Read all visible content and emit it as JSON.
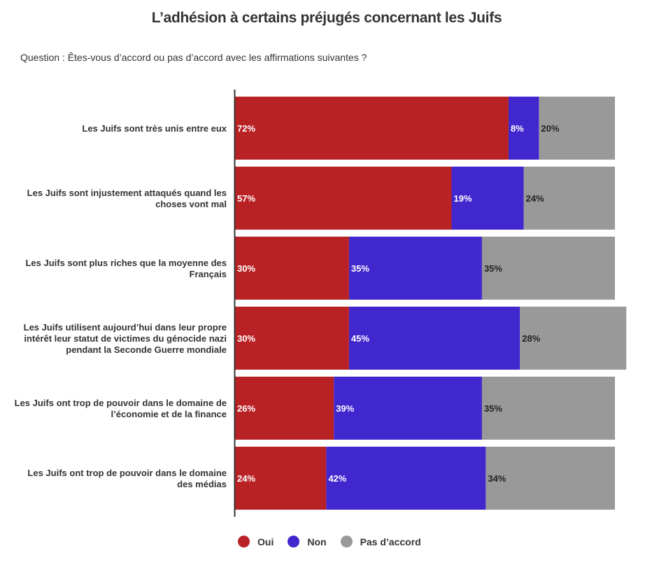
{
  "title": "L’adhésion à certains préjugés concernant les Juifs",
  "question": "Question : Êtes-vous d’accord ou pas d’accord avec les affirmations suivantes ?",
  "chart_data": {
    "type": "bar",
    "orientation": "horizontal",
    "stacked": true,
    "categories": [
      [
        "Les Juifs sont très unis entre eux"
      ],
      [
        "Les Juifs sont injustement attaqués quand les",
        "choses vont mal"
      ],
      [
        "Les Juifs sont plus riches que la moyenne des",
        "Français"
      ],
      [
        "Les Juifs utilisent aujourd’hui dans leur propre",
        "intérêt leur statut de victimes du génocide nazi",
        "pendant la Seconde Guerre mondiale"
      ],
      [
        "Les Juifs ont trop de pouvoir dans le domaine de",
        "l’économie et de la finance"
      ],
      [
        "Les Juifs ont trop de pouvoir dans le domaine",
        "des médias"
      ]
    ],
    "series": [
      {
        "name": "Oui",
        "color": "#b92225",
        "values": [
          72,
          57,
          30,
          30,
          26,
          24
        ]
      },
      {
        "name": "Non",
        "color": "#4127ce",
        "values": [
          8,
          19,
          35,
          45,
          39,
          42
        ]
      },
      {
        "name": "Pas d’accord",
        "color": "#999999",
        "values": [
          20,
          24,
          35,
          28,
          35,
          34
        ]
      }
    ],
    "value_suffix": "%",
    "legend_position": "bottom",
    "grid": false
  }
}
